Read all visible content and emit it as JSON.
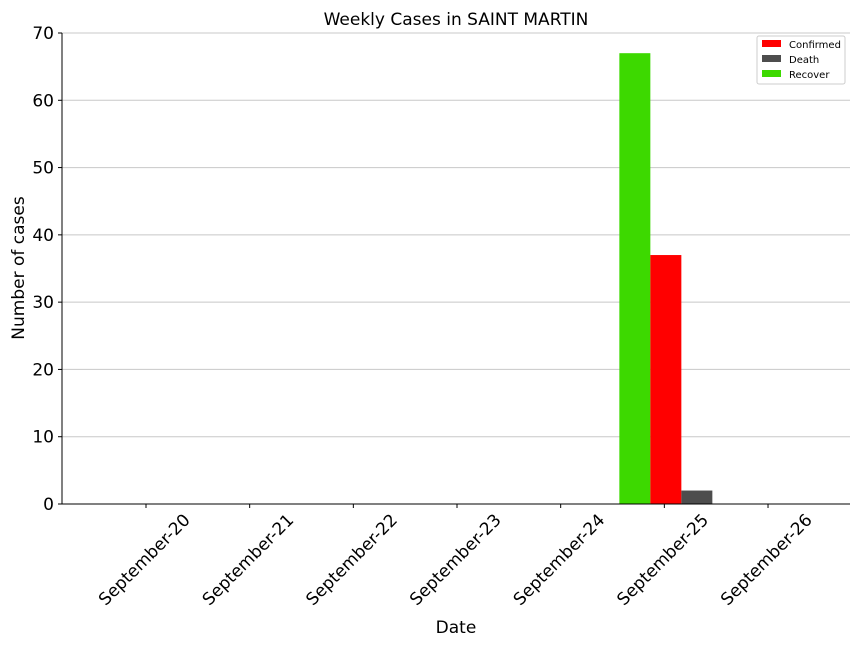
{
  "chart_data": {
    "type": "bar",
    "title": "Weekly Cases in SAINT MARTIN",
    "xlabel": "Date",
    "ylabel": "Number of cases",
    "ylim": [
      0,
      70
    ],
    "yticks": [
      0,
      10,
      20,
      30,
      40,
      50,
      60,
      70
    ],
    "grid": "horizontal",
    "legend_position": "top-right",
    "categories": [
      "September-20",
      "September-21",
      "September-22",
      "September-23",
      "September-24",
      "September-25",
      "September-26"
    ],
    "series": [
      {
        "name": "Confirmed",
        "color": "#ff0000",
        "values": [
          0,
          0,
          0,
          0,
          0,
          37,
          0
        ]
      },
      {
        "name": "Death",
        "color": "#4d4d4d",
        "values": [
          0,
          0,
          0,
          0,
          0,
          2,
          0
        ]
      },
      {
        "name": "Recover",
        "color": "#3dd900",
        "values": [
          0,
          0,
          0,
          0,
          0,
          67,
          0
        ]
      }
    ]
  }
}
